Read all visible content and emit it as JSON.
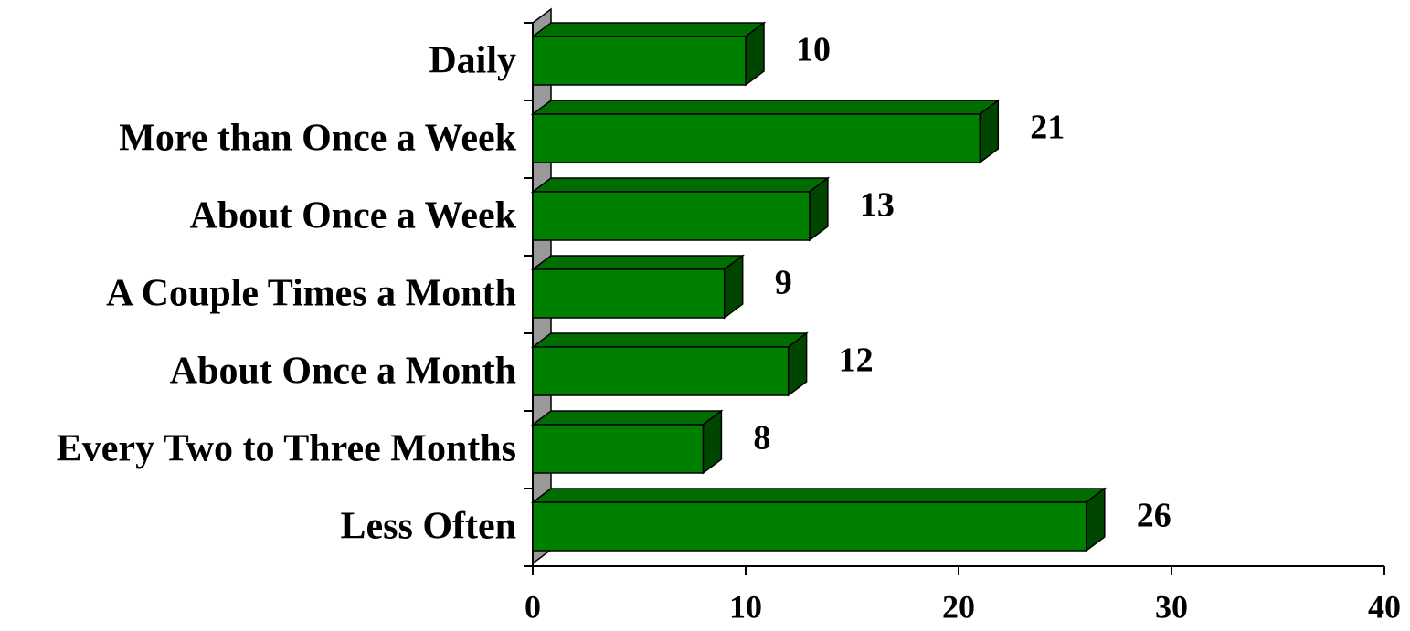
{
  "chart_data": {
    "type": "bar",
    "orientation": "horizontal",
    "categories": [
      "Daily",
      "More than Once a Week",
      "About Once a Week",
      "A Couple Times a Month",
      "About Once a Month",
      "Every Two to Three Months",
      "Less Often"
    ],
    "values": [
      10,
      21,
      13,
      9,
      12,
      8,
      26
    ],
    "color": "#008000",
    "xlim": [
      0,
      40
    ],
    "xticks": [
      0,
      10,
      20,
      30,
      40
    ]
  }
}
